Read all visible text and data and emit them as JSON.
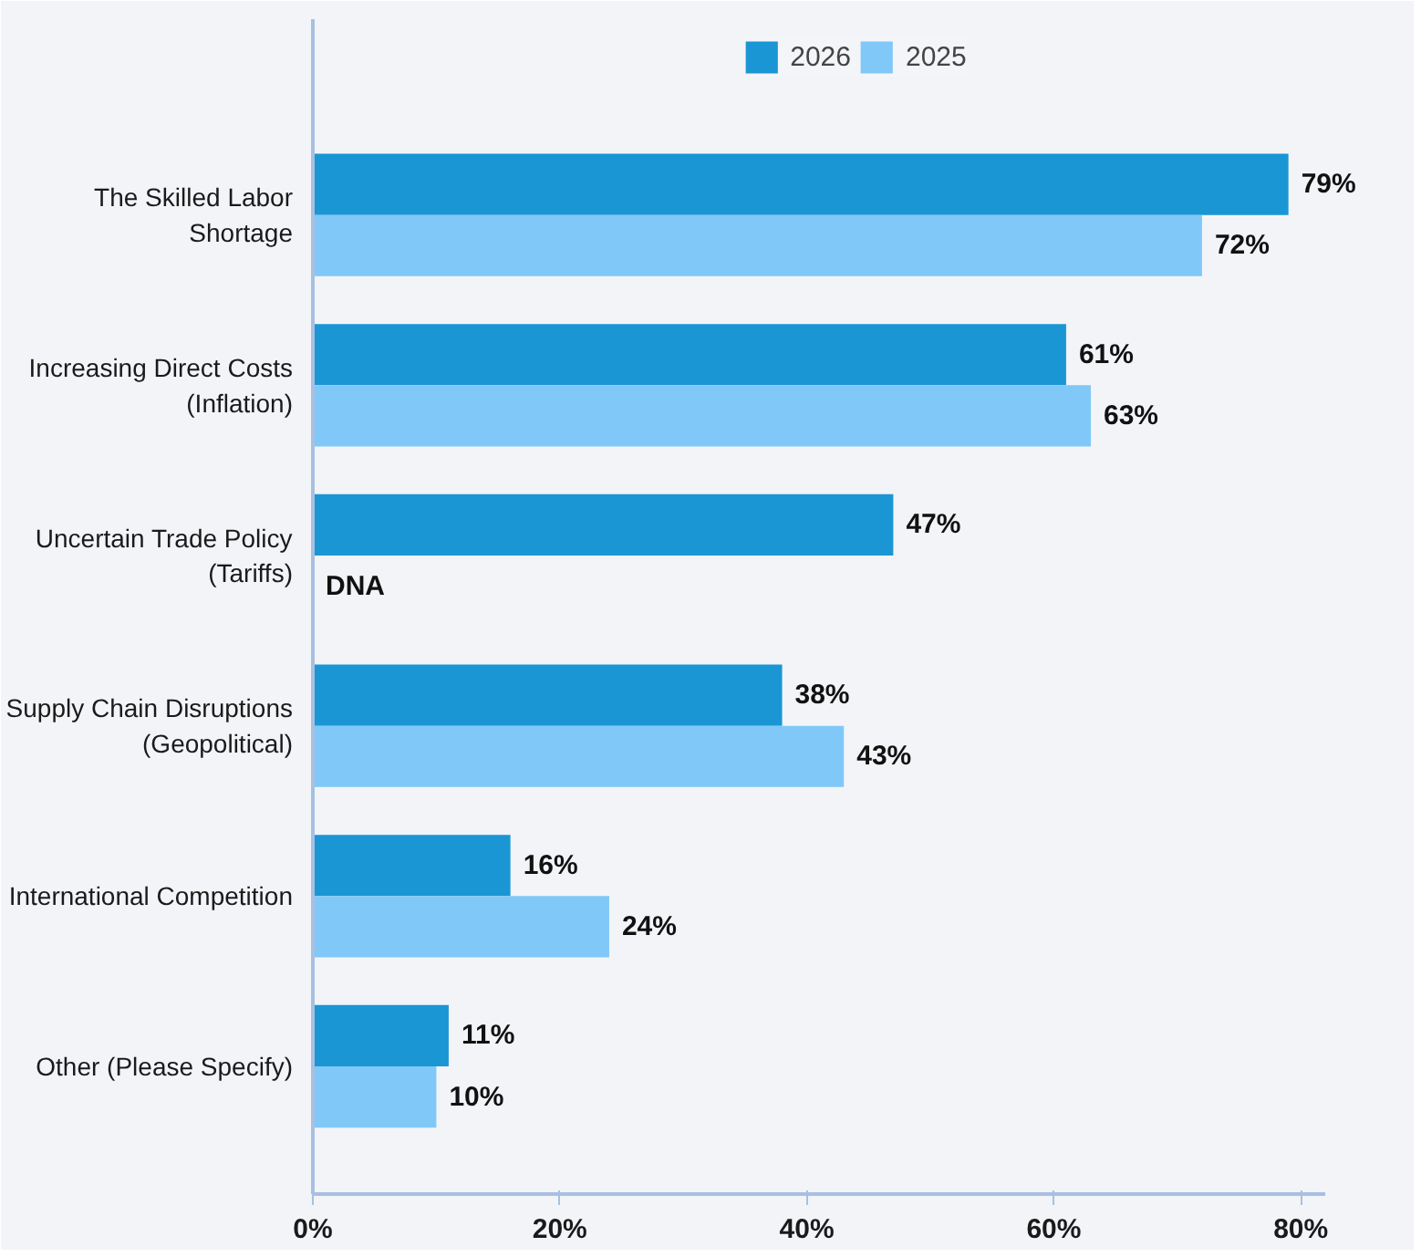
{
  "chart_data": {
    "type": "bar",
    "orientation": "horizontal",
    "categories": [
      "The Skilled Labor Shortage",
      "Increasing Direct Costs (Inflation)",
      "Uncertain Trade Policy (Tariffs)",
      "Supply Chain Disruptions (Geopolitical)",
      "International Competition",
      "Other (Please Specify)"
    ],
    "series": [
      {
        "name": "2026",
        "color": "#1a96d4",
        "values": [
          79,
          61,
          47,
          38,
          16,
          11
        ],
        "value_labels": [
          "79%",
          "61%",
          "47%",
          "38%",
          "16%",
          "11%"
        ]
      },
      {
        "name": "2025",
        "color": "#80c8f8",
        "values": [
          72,
          63,
          null,
          43,
          24,
          10
        ],
        "value_labels": [
          "72%",
          "63%",
          "DNA",
          "43%",
          "24%",
          "10%"
        ]
      }
    ],
    "xlim": [
      0,
      82
    ],
    "xticks": [
      {
        "value": 0,
        "label": "0%"
      },
      {
        "value": 20,
        "label": "20%"
      },
      {
        "value": 40,
        "label": "40%"
      },
      {
        "value": 60,
        "label": "60%"
      },
      {
        "value": 80,
        "label": "80%"
      }
    ],
    "grid": false,
    "legend": "top"
  }
}
